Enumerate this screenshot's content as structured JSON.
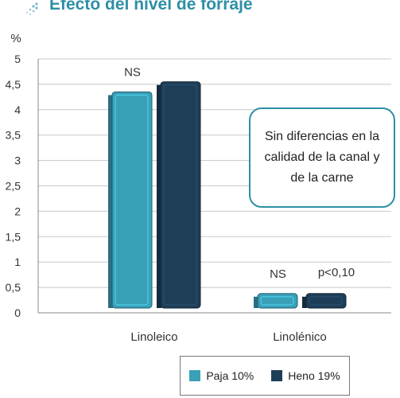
{
  "header": {
    "title": "Efecto del nivel de forraje",
    "title_color": "#2e8fa6"
  },
  "callout": {
    "text": "Sin diferencias en la calidad de la canal y de la carne"
  },
  "chart_data": {
    "type": "bar",
    "ylabel": "%",
    "ylim": [
      0,
      5
    ],
    "yticks": [
      "0",
      "0,5",
      "1",
      "1,5",
      "2",
      "2,5",
      "3",
      "3,5",
      "4",
      "4,5",
      "5"
    ],
    "categories": [
      "Linoleico",
      "Linolénico"
    ],
    "series": [
      {
        "name": "Paja 10%",
        "color": "#3aa0b8",
        "values": [
          4.35,
          0.38
        ]
      },
      {
        "name": "Heno 19%",
        "color": "#1e3e58",
        "values": [
          4.55,
          0.38
        ]
      }
    ],
    "annotations": [
      {
        "category": "Linoleico",
        "text": "NS"
      },
      {
        "category": "Linolénico",
        "text": "NS"
      },
      {
        "category": "Linolénico",
        "series": "Heno 19%",
        "text": "p<0,10"
      }
    ],
    "grid": true,
    "legend": "bottom-right"
  }
}
